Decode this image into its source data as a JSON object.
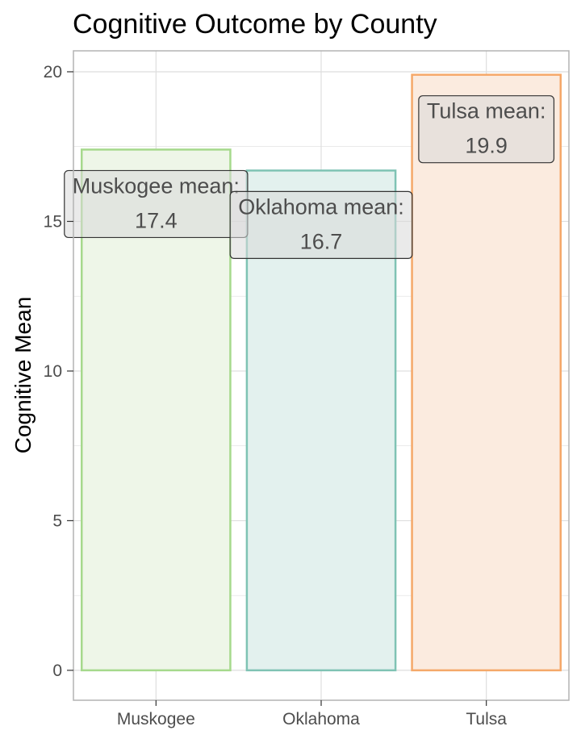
{
  "chart_data": {
    "type": "bar",
    "title": "Cognitive Outcome by County",
    "xlabel": "",
    "ylabel": "Cognitive Mean",
    "categories": [
      "Muskogee",
      "Oklahoma",
      "Tulsa"
    ],
    "values": [
      17.4,
      16.7,
      19.9
    ],
    "annotations": [
      {
        "line1": "Muskogee mean:",
        "line2": "17.4"
      },
      {
        "line1": "Oklahoma mean:",
        "line2": "16.7"
      },
      {
        "line1": "Tulsa mean:",
        "line2": "19.9"
      }
    ],
    "yticks": [
      0,
      5,
      10,
      15,
      20
    ],
    "ylim": [
      -1,
      20.7
    ],
    "grid": true,
    "legend": "none",
    "colors": {
      "stroke": [
        "#a6d98c",
        "#7fc3b4",
        "#f5a869"
      ],
      "fill": [
        "#eef6e8",
        "#e3f1ee",
        "#fbebdf"
      ],
      "label_box": "#d9d9d9",
      "grid": "#dedede",
      "panel_border": "#b3b3b3"
    }
  }
}
